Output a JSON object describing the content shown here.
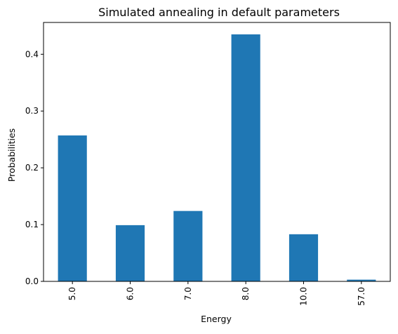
{
  "chart_data": {
    "type": "bar",
    "title": "Simulated annealing in default parameters",
    "xlabel": "Energy",
    "ylabel": "Probabilities",
    "categories": [
      "5.0",
      "6.0",
      "7.0",
      "8.0",
      "10.0",
      "57.0"
    ],
    "values": [
      0.257,
      0.099,
      0.124,
      0.435,
      0.083,
      0.003
    ],
    "ylim": [
      0,
      0.456
    ],
    "yticks": [
      0.0,
      0.1,
      0.2,
      0.3,
      0.4
    ],
    "ytick_labels": [
      "0.0",
      "0.1",
      "0.2",
      "0.3",
      "0.4"
    ],
    "xtick_rotation": "vertical",
    "bar_color": "#1f77b4",
    "grid": false,
    "legend": "none"
  }
}
